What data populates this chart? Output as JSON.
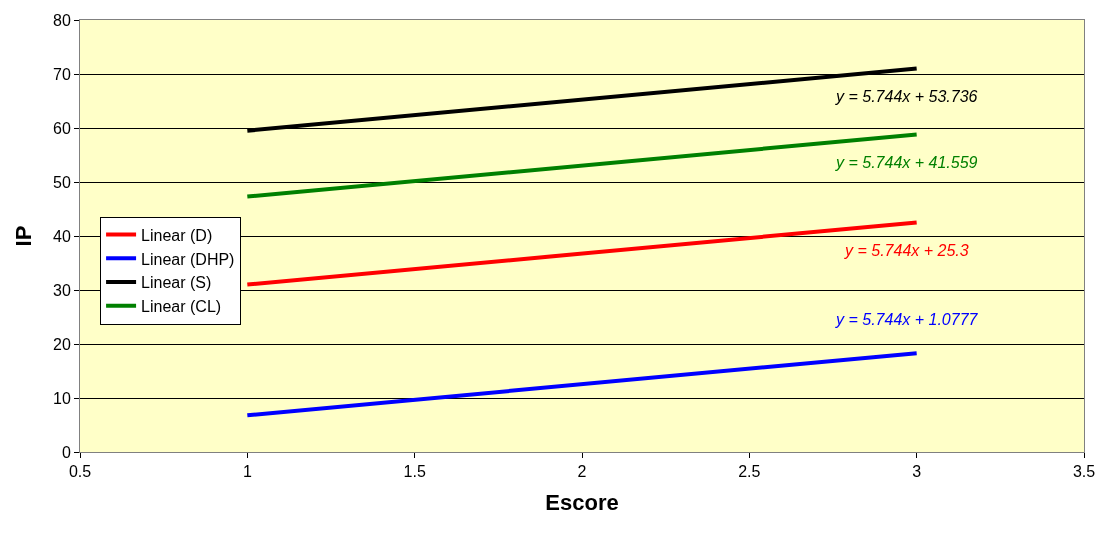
{
  "chart_data": {
    "type": "line",
    "xlabel": "Escore",
    "ylabel": "IP",
    "x": [
      1,
      3
    ],
    "series": [
      {
        "name": "Linear (D)",
        "color": "#ff0000",
        "values": [
          31.0,
          42.5
        ]
      },
      {
        "name": "Linear (DHP)",
        "color": "#0000ff",
        "values": [
          6.8,
          18.3
        ]
      },
      {
        "name": "Linear (S)",
        "color": "#000000",
        "values": [
          59.5,
          71.0
        ]
      },
      {
        "name": "Linear (CL)",
        "color": "#008000",
        "values": [
          47.3,
          58.8
        ]
      }
    ],
    "annotations": [
      "y = 5.744x + 25.3",
      "y = 5.744x + 1.0777",
      "y = 5.744x + 53.736",
      "y = 5.744x + 41.559"
    ],
    "xlim": [
      0.5,
      3.5
    ],
    "xticks": [
      0.5,
      1,
      1.5,
      2,
      2.5,
      3,
      3.5
    ],
    "ylim": [
      0,
      80
    ],
    "yticks": [
      0,
      10,
      20,
      30,
      40,
      50,
      60,
      70,
      80
    ],
    "grid": "y",
    "legend": "left",
    "marker": "none",
    "line_style": "solid"
  }
}
